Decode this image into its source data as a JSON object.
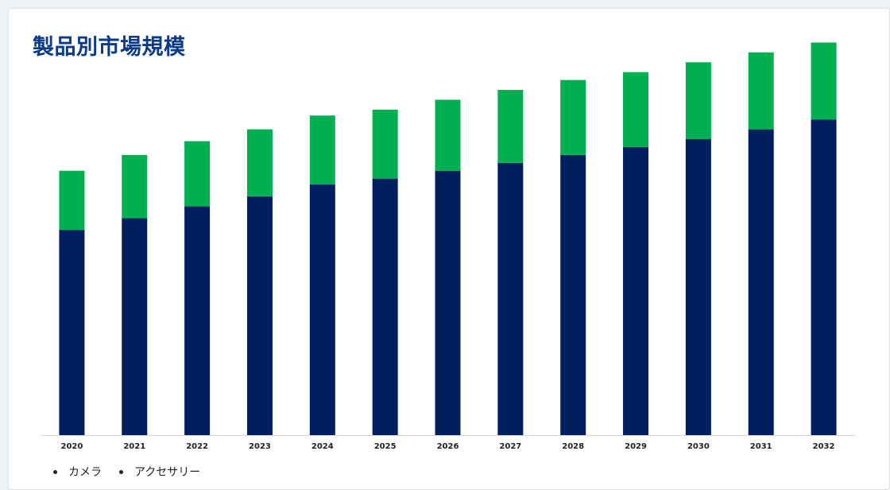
{
  "header": {
    "title": "製品別市場規模"
  },
  "colors": {
    "camera": "#001f5f",
    "accessory": "#00b050",
    "title": "#0b3a86"
  },
  "chart_data": {
    "type": "bar",
    "stacked": true,
    "title": "製品別市場規模",
    "xlabel": "",
    "ylabel": "",
    "ylim": [
      0,
      100
    ],
    "grid": false,
    "legend_position": "bottom-left",
    "categories": [
      "2020",
      "2021",
      "2022",
      "2023",
      "2024",
      "2025",
      "2026",
      "2027",
      "2028",
      "2029",
      "2030",
      "2031",
      "2032"
    ],
    "series": [
      {
        "name": "カメラ",
        "color": "#001f5f",
        "values": [
          52.0,
          55.0,
          58.0,
          60.5,
          63.5,
          65.0,
          67.0,
          69.0,
          71.0,
          73.0,
          75.0,
          77.5,
          80.0
        ]
      },
      {
        "name": "アクセサリー",
        "color": "#00b050",
        "values": [
          15.0,
          16.0,
          16.5,
          17.0,
          17.5,
          17.5,
          18.0,
          18.5,
          19.0,
          19.0,
          19.5,
          19.5,
          19.5
        ]
      }
    ]
  }
}
